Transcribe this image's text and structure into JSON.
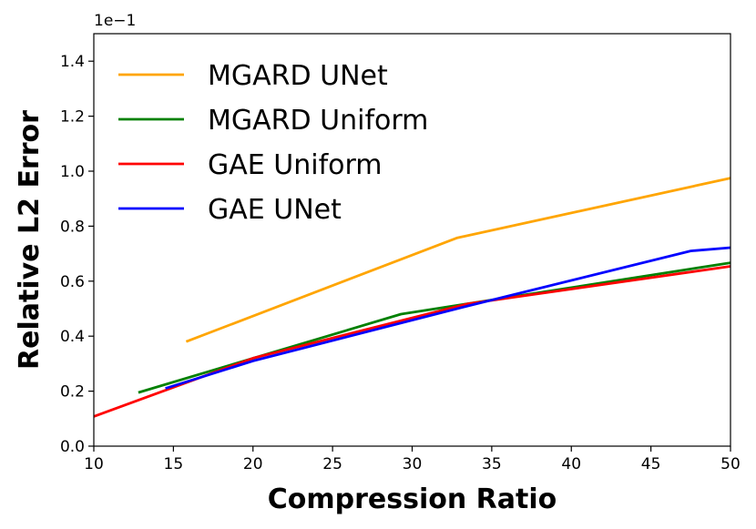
{
  "chart_data": {
    "type": "line",
    "xlabel": "Compression Ratio",
    "ylabel": "Relative L2 Error",
    "y_scale_label": "1e−1",
    "xlim": [
      10,
      50
    ],
    "ylim": [
      0,
      1.5
    ],
    "xticks": [
      "10",
      "15",
      "20",
      "25",
      "30",
      "35",
      "40",
      "45",
      "50"
    ],
    "yticks": [
      "0.0",
      "0.2",
      "0.4",
      "0.6",
      "0.8",
      "1.0",
      "1.2",
      "1.4"
    ],
    "legend_position": "top-left",
    "series": [
      {
        "name": "MGARD UNet",
        "color": "#FFA500",
        "x": [
          15.8,
          32.8,
          50
        ],
        "y": [
          0.38,
          0.757,
          0.975
        ]
      },
      {
        "name": "MGARD Uniform",
        "color": "#008000",
        "x": [
          12.8,
          29.3,
          50
        ],
        "y": [
          0.195,
          0.48,
          0.667
        ]
      },
      {
        "name": "GAE Uniform",
        "color": "#FF0000",
        "x": [
          10,
          20,
          33.5,
          50
        ],
        "y": [
          0.108,
          0.32,
          0.518,
          0.654
        ]
      },
      {
        "name": "GAE UNet",
        "color": "#0000FF",
        "x": [
          14.5,
          20,
          33.5,
          47.5,
          50
        ],
        "y": [
          0.21,
          0.31,
          0.51,
          0.71,
          0.722
        ]
      }
    ]
  }
}
